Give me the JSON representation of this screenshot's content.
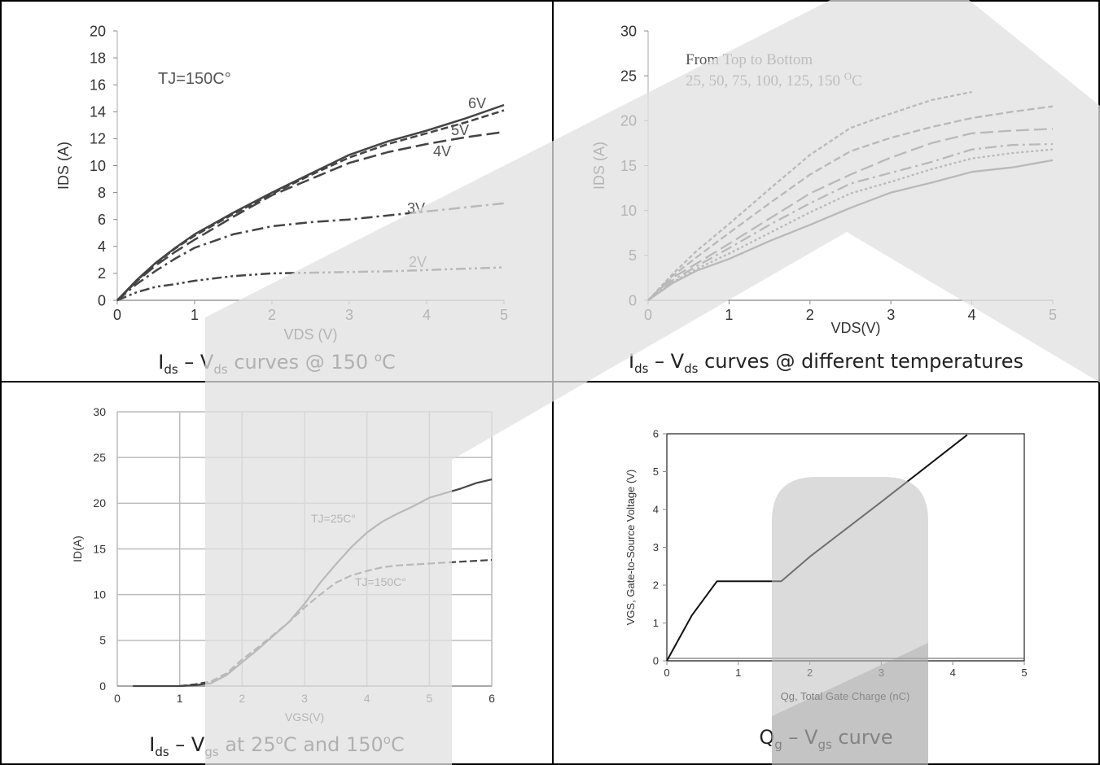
{
  "colors": {
    "line": "#444444",
    "grid": "#cccccc",
    "axis": "#999999",
    "watermark": "#e6e6e6",
    "watermark_dark": "#c9c9c9"
  },
  "captions": {
    "c1": {
      "a": "I",
      "a_sub": "ds",
      "b": " – V",
      "b_sub": "ds",
      "c": " curves @ 150 ",
      "c_sup": "o",
      "d": "C"
    },
    "c2": {
      "a": "I",
      "a_sub": "ds",
      "b": " – V",
      "b_sub": "ds",
      "c": " curves @ different temperatures"
    },
    "c3": {
      "a": "I",
      "a_sub": "ds",
      "b": "  – V",
      "b_sub": "gs",
      "c": " at 25",
      "c_sup": "o",
      "d": "C and 150",
      "d_sup": "o",
      "e": "C"
    },
    "c4": {
      "a": "Q",
      "a_sub": "g",
      "b": " – V",
      "b_sub": "gs",
      "c": " curve"
    }
  },
  "chart_data": [
    {
      "type": "line",
      "xlabel": "VDS (V)",
      "ylabel": "IDS (A)",
      "xlim": [
        0,
        5
      ],
      "ylim": [
        0,
        20
      ],
      "xticks": [
        "0",
        "1",
        "2",
        "3",
        "4",
        "5"
      ],
      "yticks": [
        "0",
        "2",
        "4",
        "6",
        "8",
        "10",
        "12",
        "14",
        "16",
        "18",
        "20"
      ],
      "grid": false,
      "annotation": "TJ=150C°",
      "series": [
        {
          "name": "6V",
          "style": "solid",
          "x": [
            0,
            0.25,
            0.5,
            0.75,
            1,
            1.5,
            2,
            2.5,
            3,
            3.5,
            4,
            4.5,
            5
          ],
          "y": [
            0,
            1.5,
            2.8,
            3.9,
            4.9,
            6.5,
            8,
            9.4,
            10.8,
            11.8,
            12.6,
            13.5,
            14.5
          ]
        },
        {
          "name": "5V",
          "style": "dash",
          "x": [
            0,
            0.25,
            0.5,
            0.75,
            1,
            1.5,
            2,
            2.5,
            3,
            3.5,
            4,
            4.5,
            5
          ],
          "y": [
            0,
            1.45,
            2.75,
            3.85,
            4.8,
            6.4,
            7.9,
            9.3,
            10.6,
            11.6,
            12.4,
            13.2,
            14.1
          ]
        },
        {
          "name": "4V",
          "style": "longdash",
          "x": [
            0,
            0.25,
            0.5,
            0.75,
            1,
            1.5,
            2,
            2.5,
            3,
            3.5,
            4,
            4.5,
            5
          ],
          "y": [
            0,
            1.4,
            2.6,
            3.6,
            4.5,
            6.2,
            7.8,
            9,
            10.2,
            11,
            11.6,
            12.1,
            12.5
          ]
        },
        {
          "name": "3V",
          "style": "dashdot",
          "x": [
            0,
            0.25,
            0.5,
            0.75,
            1,
            1.5,
            2,
            2.5,
            3,
            3.5,
            4,
            4.5,
            5
          ],
          "y": [
            0,
            1.2,
            2.2,
            3.1,
            3.9,
            4.9,
            5.5,
            5.8,
            6,
            6.3,
            6.6,
            6.9,
            7.2
          ]
        },
        {
          "name": "2V",
          "style": "dashdotdot",
          "x": [
            0,
            0.25,
            0.5,
            0.75,
            1,
            1.5,
            2,
            2.5,
            3,
            3.5,
            4,
            4.5,
            5
          ],
          "y": [
            0,
            0.6,
            1,
            1.2,
            1.45,
            1.8,
            2,
            2.05,
            2.1,
            2.15,
            2.25,
            2.35,
            2.45
          ]
        }
      ]
    },
    {
      "type": "line",
      "xlabel": "VDS(V)",
      "ylabel": "IDS (A)",
      "xlim": [
        0,
        5
      ],
      "ylim": [
        0,
        30
      ],
      "xticks": [
        "0",
        "1",
        "2",
        "3",
        "4",
        "5"
      ],
      "yticks": [
        "0",
        "5",
        "10",
        "15",
        "20",
        "25",
        "30"
      ],
      "grid": false,
      "annotation_lines": [
        "From Top to Bottom",
        "25, 50, 75, 100, 125, 150 "
      ],
      "annotation_sup": "O",
      "annotation_tail": "C",
      "series": [
        {
          "name": "25",
          "style": "dotdash-fine",
          "x": [
            0,
            0.3,
            0.6,
            1,
            1.5,
            2,
            2.5,
            3,
            3.5,
            4
          ],
          "y": [
            0,
            2.9,
            5.5,
            8.5,
            12.4,
            16.2,
            19.2,
            20.8,
            22.3,
            23.2
          ]
        },
        {
          "name": "50",
          "style": "dash",
          "x": [
            0,
            0.3,
            0.6,
            1,
            1.5,
            2,
            2.5,
            3,
            3.5,
            4,
            4.5,
            5
          ],
          "y": [
            0,
            2.7,
            4.8,
            7.5,
            10.8,
            14,
            16.6,
            18.1,
            19.3,
            20.3,
            21,
            21.6
          ]
        },
        {
          "name": "75",
          "style": "longdash",
          "x": [
            0,
            0.3,
            0.6,
            1,
            1.5,
            2,
            2.5,
            3,
            3.5,
            4,
            4.5,
            5
          ],
          "y": [
            0,
            2.5,
            4.1,
            6.3,
            9.1,
            11.9,
            14,
            15.9,
            17.5,
            18.6,
            18.9,
            19.1
          ]
        },
        {
          "name": "100",
          "style": "dashdot",
          "x": [
            0,
            0.3,
            0.6,
            1,
            1.5,
            2,
            2.5,
            3,
            3.5,
            4,
            4.5,
            5
          ],
          "y": [
            0,
            2.2,
            3.8,
            5.8,
            8.4,
            10.8,
            13,
            14.2,
            15.4,
            16.8,
            17.3,
            17.4
          ]
        },
        {
          "name": "125",
          "style": "dotted-dash",
          "x": [
            0,
            0.3,
            0.6,
            1,
            1.5,
            2,
            2.5,
            3,
            3.5,
            4,
            4.5,
            5
          ],
          "y": [
            0,
            2,
            3.5,
            5.2,
            7.5,
            9.8,
            11.9,
            13.2,
            14.6,
            15.8,
            16.4,
            16.8
          ]
        },
        {
          "name": "150",
          "style": "solid",
          "x": [
            0,
            0.3,
            0.6,
            1,
            1.5,
            2,
            2.5,
            3,
            3.5,
            4,
            4.5,
            5
          ],
          "y": [
            0,
            1.9,
            3.3,
            4.6,
            6.6,
            8.4,
            10.3,
            12,
            13.1,
            14.3,
            14.8,
            15.6
          ]
        }
      ]
    },
    {
      "type": "line",
      "xlabel": "VGS(V)",
      "ylabel": "ID(A)",
      "xlim": [
        0,
        6
      ],
      "ylim": [
        0,
        30
      ],
      "xticks": [
        "0",
        "1",
        "2",
        "3",
        "4",
        "5",
        "6"
      ],
      "yticks": [
        "0",
        "5",
        "10",
        "15",
        "20",
        "25",
        "30"
      ],
      "grid": true,
      "series": [
        {
          "name": "TJ=25C°",
          "style": "solid",
          "x": [
            0.25,
            0.5,
            0.75,
            1,
            1.25,
            1.5,
            1.75,
            2,
            2.25,
            2.5,
            2.75,
            3,
            3.25,
            3.5,
            3.75,
            4,
            4.25,
            4.5,
            4.75,
            5,
            5.25,
            5.5,
            5.75,
            6
          ],
          "y": [
            0,
            0,
            0,
            0,
            0.1,
            0.3,
            1.2,
            2.6,
            4,
            5.5,
            7,
            9,
            11.3,
            13.3,
            15.2,
            16.8,
            18,
            18.9,
            19.7,
            20.6,
            21.1,
            21.6,
            22.2,
            22.6
          ]
        },
        {
          "name": "TJ=150C°",
          "style": "dash",
          "x": [
            1,
            1.25,
            1.5,
            1.75,
            2,
            2.25,
            2.5,
            2.75,
            3,
            3.25,
            3.5,
            3.75,
            4,
            4.25,
            4.5,
            4.75,
            5,
            5.25,
            5.5,
            5.75,
            6
          ],
          "y": [
            0,
            0.2,
            0.5,
            1.4,
            2.9,
            4.2,
            5.6,
            7,
            8.6,
            10,
            11.3,
            12.1,
            12.6,
            13,
            13.2,
            13.3,
            13.4,
            13.5,
            13.6,
            13.7,
            13.8
          ]
        }
      ]
    },
    {
      "type": "line",
      "xlabel": "Qg, Total Gate Charge (nC)",
      "ylabel": "VGS, Gate-to-Source Voltage (V)",
      "xlim": [
        0,
        5
      ],
      "ylim": [
        0,
        6
      ],
      "xticks": [
        "0",
        "1",
        "2",
        "3",
        "4",
        "5"
      ],
      "yticks": [
        "0",
        "1",
        "2",
        "3",
        "4",
        "5",
        "6"
      ],
      "grid": false,
      "series": [
        {
          "style": "solid",
          "x": [
            0,
            0.35,
            0.7,
            1.6,
            2.0,
            3.0,
            4.2
          ],
          "y": [
            0,
            1.2,
            2.1,
            2.1,
            2.75,
            4.2,
            5.97
          ]
        }
      ]
    }
  ]
}
